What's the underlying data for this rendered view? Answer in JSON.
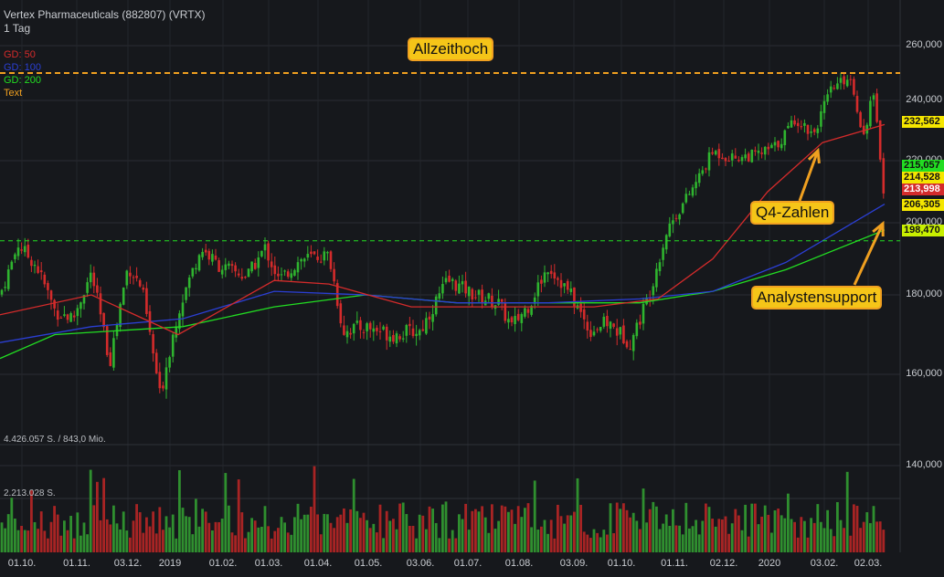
{
  "header": {
    "title": "Vertex Pharmaceuticals (882807) (VRTX)",
    "period": "1 Tag"
  },
  "legend": [
    {
      "label": "GD: 50",
      "color": "#d42b2b"
    },
    {
      "label": "GD: 100",
      "color": "#2b3fd4"
    },
    {
      "label": "GD: 200",
      "color": "#22dd22"
    },
    {
      "label": "Text",
      "color": "#f0a020"
    }
  ],
  "annotations": {
    "ath": "Allzeithoch",
    "q4": "Q4-Zahlen",
    "support": "Analystensupport"
  },
  "volume_labels": {
    "top": "4.426.057 S. / 843,0 Mio.",
    "mid": "2.213.028 S."
  },
  "price_boxes": [
    {
      "text": "232,562",
      "bg": "#f5e600"
    },
    {
      "text": "215,057",
      "bg": "#22dd22"
    },
    {
      "text": "214,528",
      "bg": "#f5e600"
    },
    {
      "text": "213,998",
      "bg": "#d42b2b",
      "fg": "#ffffff"
    },
    {
      "text": "206,305",
      "bg": "#f5e600"
    },
    {
      "text": "198,470",
      "bg": "#c8f000"
    }
  ],
  "chart_data": {
    "type": "candlestick",
    "title": "Vertex Pharmaceuticals (882807) (VRTX)",
    "y_ticks": [
      "260,000",
      "240,000",
      "220,000",
      "200,000",
      "180,000",
      "160,000",
      "140,000"
    ],
    "y_tick_values": [
      260,
      240,
      220,
      200,
      180,
      160,
      140
    ],
    "x_ticks": [
      "01.10.",
      "01.11.",
      "03.12.",
      "2019",
      "01.02.",
      "01.03.",
      "01.04.",
      "01.05.",
      "03.06.",
      "01.07.",
      "01.08.",
      "03.09.",
      "01.10.",
      "01.11.",
      "02.12.",
      "2020",
      "03.02.",
      "02.03."
    ],
    "ylim": [
      150,
      265
    ],
    "all_time_high": 250,
    "support_level": 195,
    "price_waypoints": [
      [
        0,
        180
      ],
      [
        20,
        194
      ],
      [
        40,
        188
      ],
      [
        60,
        176
      ],
      [
        80,
        174
      ],
      [
        100,
        186
      ],
      [
        120,
        163
      ],
      [
        140,
        188
      ],
      [
        155,
        182
      ],
      [
        175,
        155
      ],
      [
        195,
        176
      ],
      [
        220,
        193
      ],
      [
        240,
        188
      ],
      [
        270,
        185
      ],
      [
        290,
        193
      ],
      [
        305,
        184
      ],
      [
        330,
        190
      ],
      [
        360,
        191
      ],
      [
        375,
        171
      ],
      [
        400,
        172
      ],
      [
        430,
        170
      ],
      [
        460,
        171
      ],
      [
        490,
        184
      ],
      [
        520,
        180
      ],
      [
        545,
        178
      ],
      [
        560,
        172
      ],
      [
        580,
        178
      ],
      [
        600,
        188
      ],
      [
        625,
        180
      ],
      [
        645,
        171
      ],
      [
        665,
        173
      ],
      [
        690,
        168
      ],
      [
        710,
        180
      ],
      [
        730,
        198
      ],
      [
        760,
        212
      ],
      [
        780,
        223
      ],
      [
        800,
        221
      ],
      [
        830,
        222
      ],
      [
        850,
        225
      ],
      [
        870,
        234
      ],
      [
        890,
        229
      ],
      [
        910,
        244
      ],
      [
        930,
        249
      ],
      [
        945,
        228
      ],
      [
        955,
        243
      ],
      [
        962,
        225
      ],
      [
        968,
        208
      ]
    ],
    "ma_50": [
      [
        0,
        175
      ],
      [
        100,
        180
      ],
      [
        195,
        170
      ],
      [
        300,
        184
      ],
      [
        360,
        183
      ],
      [
        450,
        177
      ],
      [
        550,
        177
      ],
      [
        650,
        177
      ],
      [
        720,
        179
      ],
      [
        780,
        190
      ],
      [
        840,
        210
      ],
      [
        900,
        226
      ],
      [
        968,
        232
      ]
    ],
    "ma_100": [
      [
        0,
        168
      ],
      [
        100,
        172
      ],
      [
        200,
        174
      ],
      [
        300,
        181
      ],
      [
        400,
        180
      ],
      [
        500,
        178
      ],
      [
        600,
        178
      ],
      [
        700,
        179
      ],
      [
        780,
        181
      ],
      [
        860,
        189
      ],
      [
        968,
        206
      ]
    ],
    "ma_200": [
      [
        0,
        164
      ],
      [
        60,
        170
      ],
      [
        200,
        172
      ],
      [
        300,
        177
      ],
      [
        400,
        180
      ],
      [
        500,
        178
      ],
      [
        600,
        178
      ],
      [
        700,
        178
      ],
      [
        780,
        181
      ],
      [
        860,
        187
      ],
      [
        968,
        198
      ]
    ]
  }
}
